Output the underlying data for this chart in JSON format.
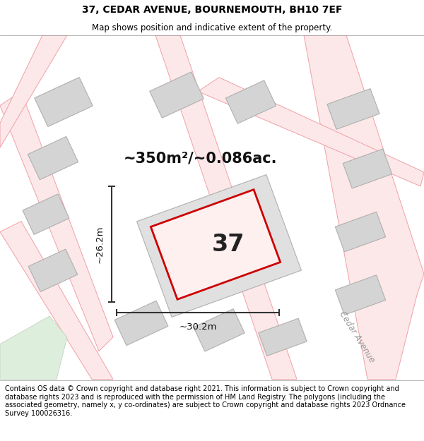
{
  "title": "37, CEDAR AVENUE, BOURNEMOUTH, BH10 7EF",
  "subtitle": "Map shows position and indicative extent of the property.",
  "footer": "Contains OS data © Crown copyright and database right 2021. This information is subject to Crown copyright and database rights 2023 and is reproduced with the permission of HM Land Registry. The polygons (including the associated geometry, namely x, y co-ordinates) are subject to Crown copyright and database rights 2023 Ordnance Survey 100026316.",
  "area_label": "~350m²/~0.086ac.",
  "number_label": "37",
  "dim_vertical": "~26.2m",
  "dim_horizontal": "~30.2m",
  "street_label": "Cedar Avenue",
  "road_color": "#f0a0a8",
  "highlight_color": "#cc0000",
  "building_fill": "#d4d4d4",
  "building_edge": "#b0b0b0",
  "plot_fill": "#e0e0e0",
  "plot_edge": "#b0b0b0",
  "dim_color": "#333333",
  "green_fill": "#ddeedd",
  "green_edge": "#bbccbb",
  "figsize": [
    6.0,
    6.25
  ],
  "dpi": 100,
  "title_fontsize": 10,
  "subtitle_fontsize": 8.5,
  "footer_fontsize": 7.0,
  "area_fontsize": 15,
  "number_fontsize": 24,
  "dim_fontsize": 9.5,
  "street_fontsize": 8.5
}
